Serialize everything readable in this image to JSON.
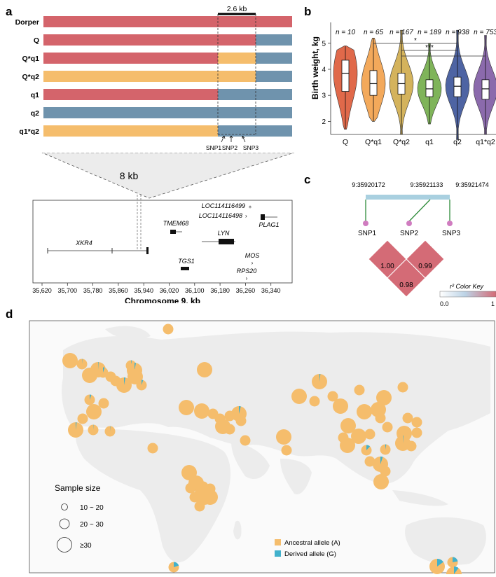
{
  "panels": {
    "a": "a",
    "b": "b",
    "c": "c",
    "d": "d"
  },
  "colors": {
    "red": "#d4646b",
    "blue": "#6f93ad",
    "orange": "#f5bd6c",
    "ancestral": "#f5bd6c",
    "derived": "#41b1cc"
  },
  "haplotypes": {
    "span_label": "2.6 kb",
    "rows": [
      {
        "label": "Dorper",
        "left": "red",
        "mid": "red",
        "right": "red"
      },
      {
        "label": "Q",
        "left": "red",
        "mid": "red",
        "right": "blue"
      },
      {
        "label": "Q*q1",
        "left": "red",
        "mid": "orange",
        "right": "blue"
      },
      {
        "label": "Q*q2",
        "left": "orange",
        "mid": "orange",
        "right": "blue"
      },
      {
        "label": "q1",
        "left": "red",
        "mid": "blue",
        "right": "blue"
      },
      {
        "label": "q2",
        "left": "blue",
        "mid": "blue",
        "right": "blue"
      },
      {
        "label": "q1*q2",
        "left": "orange",
        "mid": "blue",
        "right": "blue"
      }
    ],
    "snps": [
      "SNP1",
      "SNP2",
      "SNP3"
    ]
  },
  "gene_map": {
    "zoom_label": "8 kb",
    "genes": [
      {
        "name": "XKR4"
      },
      {
        "name": "TMEM68"
      },
      {
        "name": "LYN"
      },
      {
        "name": "PLAG1"
      },
      {
        "name": "LOC114116499"
      },
      {
        "name": "LOC114116498"
      },
      {
        "name": "MOS"
      },
      {
        "name": "TGS1"
      },
      {
        "name": "RPS20"
      }
    ],
    "ticks": [
      "35,620",
      "35,700",
      "35,780",
      "35,860",
      "35,940",
      "36,020",
      "36,100",
      "36,180",
      "36,260",
      "36,340"
    ],
    "xlabel": "Chromosome 9,  kb"
  },
  "chart_data": {
    "type": "violin",
    "ylabel": "Birth weight, kg",
    "ylim": [
      1.5,
      5.8
    ],
    "yticks": [
      "2",
      "3",
      "4",
      "5"
    ],
    "categories": [
      "Q",
      "Q*q1",
      "Q*q2",
      "q1",
      "q2",
      "q1*q2"
    ],
    "n_labels": [
      "n = 10",
      "n = 65",
      "n = 167",
      "n = 189",
      "n = 938",
      "n = 753"
    ],
    "colors": [
      "#e0694a",
      "#f3a95b",
      "#d4b35c",
      "#7fb45a",
      "#4e64a3",
      "#8b6aac"
    ],
    "boxes": [
      {
        "min": 1.7,
        "q1": 3.15,
        "median": 3.85,
        "q3": 4.35,
        "max": 4.9
      },
      {
        "min": 2.0,
        "q1": 3.0,
        "median": 3.45,
        "q3": 3.95,
        "max": 5.2
      },
      {
        "min": 1.5,
        "q1": 3.05,
        "median": 3.45,
        "q3": 3.85,
        "max": 5.5
      },
      {
        "min": 1.9,
        "q1": 2.95,
        "median": 3.25,
        "q3": 3.6,
        "max": 5.0
      },
      {
        "min": 1.3,
        "q1": 2.95,
        "median": 3.35,
        "q3": 3.7,
        "max": 5.5
      },
      {
        "min": 1.5,
        "q1": 2.85,
        "median": 3.25,
        "q3": 3.6,
        "max": 5.3
      }
    ],
    "significance": [
      {
        "from": "Q*q1",
        "to": "q2",
        "label": "*"
      },
      {
        "from": "Q*q2",
        "to": "q2",
        "label": "***"
      },
      {
        "from": "Q*q2",
        "to": "q1*q2",
        "label": ""
      }
    ]
  },
  "ld": {
    "positions": [
      "9:35920172",
      "9:35921133",
      "9:35921474"
    ],
    "snps": [
      "SNP1",
      "SNP2",
      "SNP3"
    ],
    "values": [
      "1.00",
      "0.99",
      "0.98"
    ],
    "key_title": "r² Color Key",
    "key_min": "0.0",
    "key_max": "1"
  },
  "map": {
    "sample_size_title": "Sample size",
    "sizes": [
      "10 ~ 20",
      "20 ~ 30",
      "≥30"
    ],
    "legend": [
      "Ancestral allele (A)",
      "Derived allele (G)"
    ],
    "pies": [
      [
        100,
        75,
        0.0
      ],
      [
        117,
        80,
        0.01
      ],
      [
        140,
        88,
        0.01
      ],
      [
        147,
        92,
        0.05
      ],
      [
        128,
        96,
        0.0
      ],
      [
        158,
        98,
        0.0
      ],
      [
        187,
        82,
        0.02
      ],
      [
        192,
        89,
        0.03
      ],
      [
        193,
        98,
        0.0
      ],
      [
        165,
        104,
        0.0
      ],
      [
        177,
        110,
        0.03
      ],
      [
        202,
        110,
        0.05
      ],
      [
        128,
        131,
        0.05
      ],
      [
        148,
        136,
        0.0
      ],
      [
        134,
        148,
        0.0
      ],
      [
        118,
        158,
        0.0
      ],
      [
        108,
        174,
        0.02
      ],
      [
        133,
        174,
        0.01
      ],
      [
        157,
        176,
        0.01
      ],
      [
        240,
        30,
        0.0
      ],
      [
        292,
        88,
        0.0
      ],
      [
        266,
        142,
        0.0
      ],
      [
        288,
        147,
        0.0
      ],
      [
        304,
        151,
        0.0
      ],
      [
        314,
        158,
        0.0
      ],
      [
        328,
        154,
        0.0
      ],
      [
        341,
        151,
        0.04
      ],
      [
        344,
        161,
        0.0
      ],
      [
        318,
        169,
        0.0
      ],
      [
        328,
        173,
        0.0
      ],
      [
        350,
        189,
        0.0
      ],
      [
        409,
        203,
        0.0
      ],
      [
        405,
        184,
        0.0
      ],
      [
        218,
        200,
        0.0
      ],
      [
        456,
        105,
        0.02
      ],
      [
        427,
        126,
        0.0
      ],
      [
        449,
        133,
        0.0
      ],
      [
        475,
        126,
        0.0
      ],
      [
        486,
        140,
        0.0
      ],
      [
        513,
        117,
        0.0
      ],
      [
        548,
        128,
        0.0
      ],
      [
        575,
        113,
        0.0
      ],
      [
        540,
        145,
        0.0
      ],
      [
        543,
        157,
        0.0
      ],
      [
        520,
        148,
        0.0
      ],
      [
        553,
        170,
        0.0
      ],
      [
        577,
        179,
        0.0
      ],
      [
        595,
        178,
        0.0
      ],
      [
        595,
        163,
        0.0
      ],
      [
        497,
        168,
        0.0
      ],
      [
        512,
        183,
        0.0
      ],
      [
        528,
        180,
        0.0
      ],
      [
        575,
        193,
        0.01
      ],
      [
        523,
        203,
        0.12
      ],
      [
        550,
        202,
        0.03
      ],
      [
        528,
        219,
        0.0
      ],
      [
        543,
        223,
        0.05
      ],
      [
        550,
        233,
        0.0
      ],
      [
        544,
        248,
        0.0
      ],
      [
        582,
        157,
        0.0
      ],
      [
        587,
        197,
        0.0
      ],
      [
        490,
        185,
        0.0
      ],
      [
        496,
        196,
        0.0
      ],
      [
        270,
        235,
        0.0
      ],
      [
        280,
        250,
        0.0
      ],
      [
        290,
        255,
        0.0
      ],
      [
        300,
        258,
        0.0
      ],
      [
        285,
        265,
        0.0
      ],
      [
        292,
        270,
        0.0
      ],
      [
        278,
        270,
        0.0
      ],
      [
        300,
        270,
        0.0
      ],
      [
        272,
        257,
        0.0
      ],
      [
        285,
        283,
        0.0
      ],
      [
        248,
        370,
        0.2
      ],
      [
        624,
        369,
        0.15
      ],
      [
        646,
        363,
        0.22
      ],
      [
        648,
        380,
        0.1
      ]
    ]
  }
}
